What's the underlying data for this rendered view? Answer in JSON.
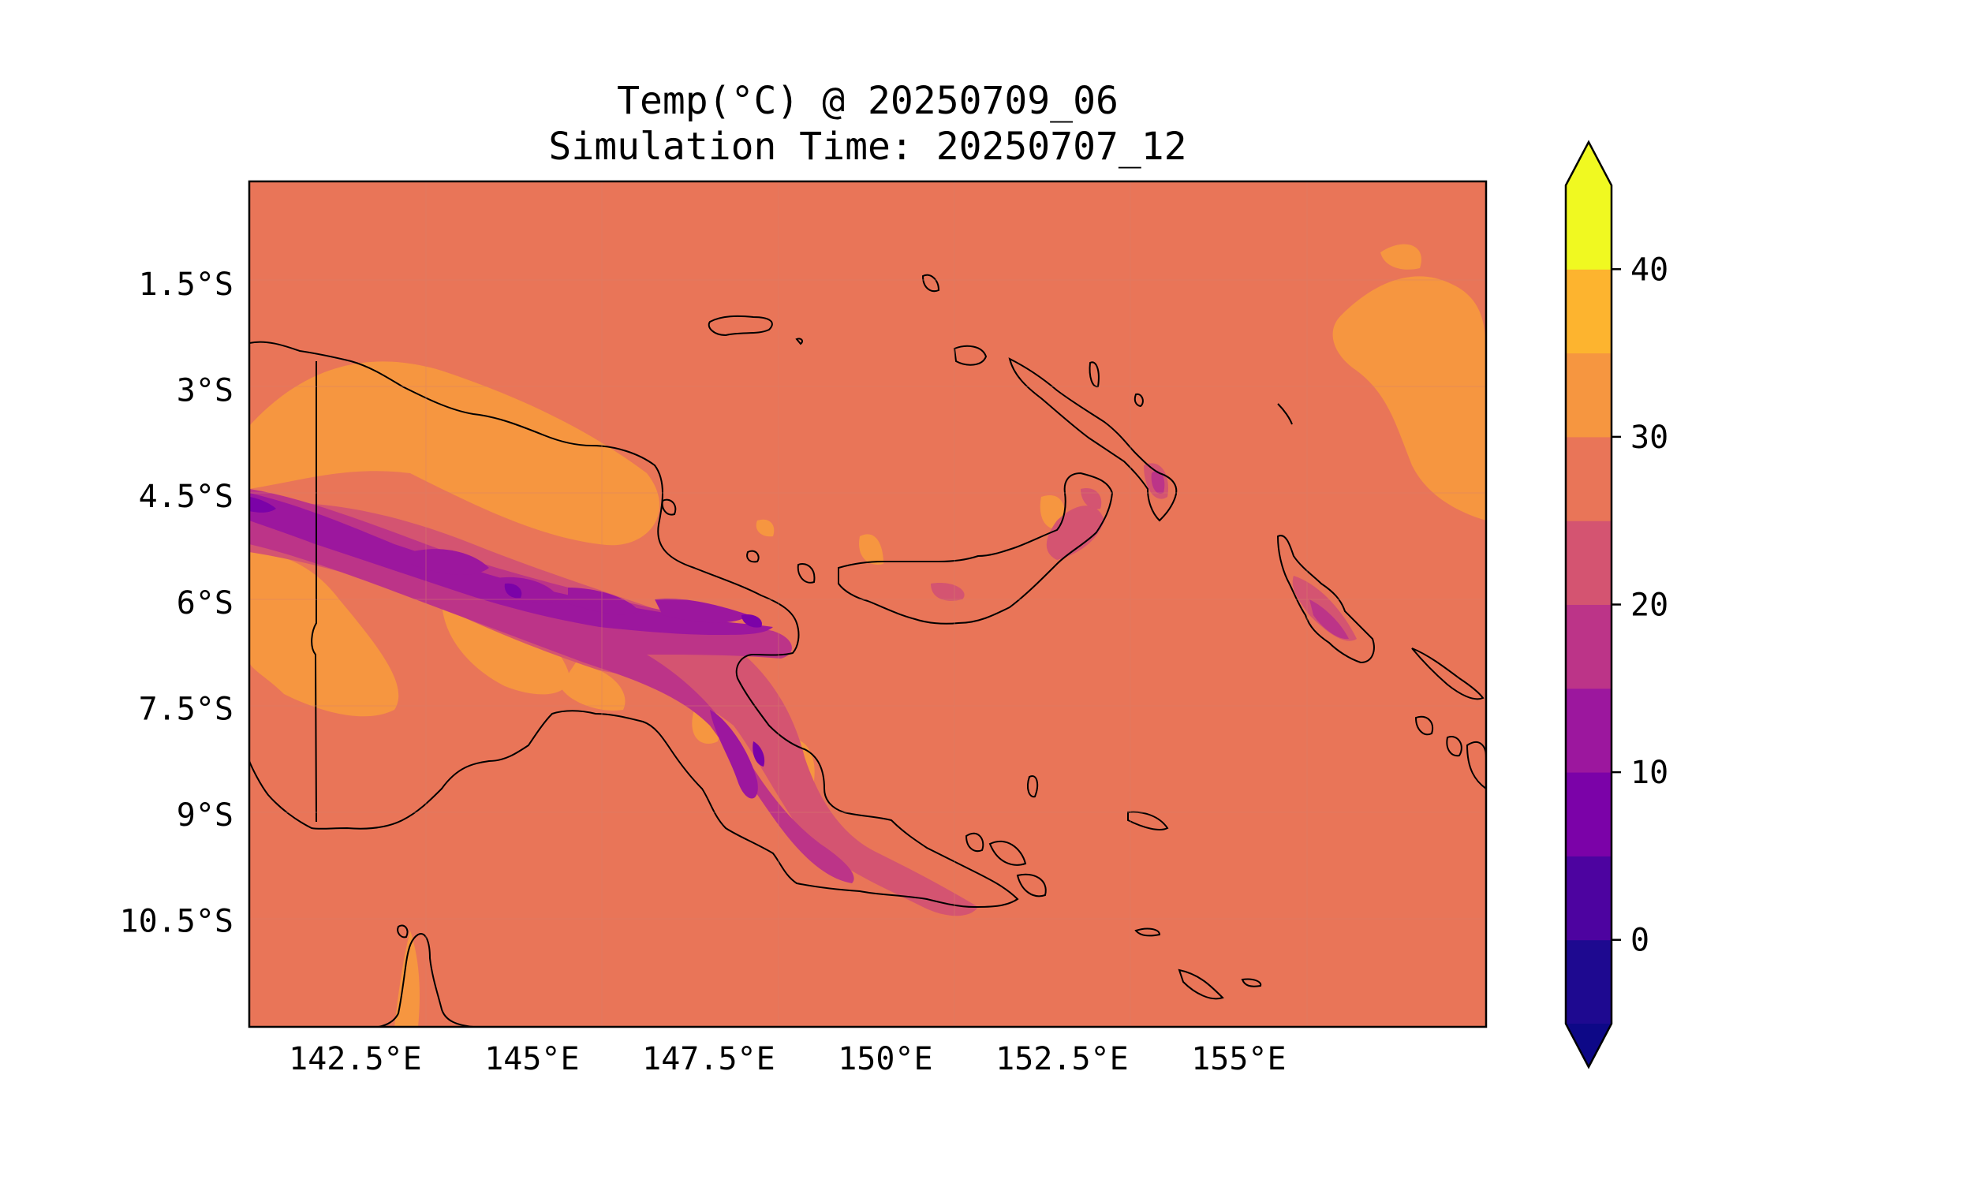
{
  "title": {
    "line1": "Temp(°C) @ 20250709_06",
    "line2": "Simulation Time: 20250707_12"
  },
  "map": {
    "region": "Papua New Guinea",
    "ocean_color": "#e97558",
    "lon_ticks": [
      "142.5°E",
      "145°E",
      "147.5°E",
      "150°E",
      "152.5°E",
      "155°E"
    ],
    "lat_ticks": [
      "1.5°S",
      "3°S",
      "4.5°S",
      "6°S",
      "7.5°S",
      "9°S",
      "10.5°S"
    ],
    "lon_values": [
      142.5,
      145,
      147.5,
      150,
      152.5,
      155
    ],
    "lat_values": [
      -1.5,
      -3,
      -4.5,
      -6,
      -7.5,
      -9,
      -10.5
    ],
    "lon_range": [
      141.0,
      158.5
    ],
    "lat_range": [
      -12.0,
      -0.05
    ]
  },
  "colorbar": {
    "levels": [
      -5,
      0,
      5,
      10,
      15,
      20,
      25,
      30,
      35,
      40,
      45
    ],
    "colors": [
      "#1e0990",
      "#4d03a0",
      "#7b02a8",
      "#9c179e",
      "#bc3488",
      "#d45471",
      "#e97558",
      "#f69640",
      "#fdb42f",
      "#f0f921"
    ],
    "under_color": "#0d0887",
    "over_color": "#f0f921",
    "tick_labels": [
      "0",
      "10",
      "20",
      "30",
      "40"
    ],
    "tick_values": [
      0,
      10,
      20,
      30,
      40
    ],
    "extend": "both"
  }
}
